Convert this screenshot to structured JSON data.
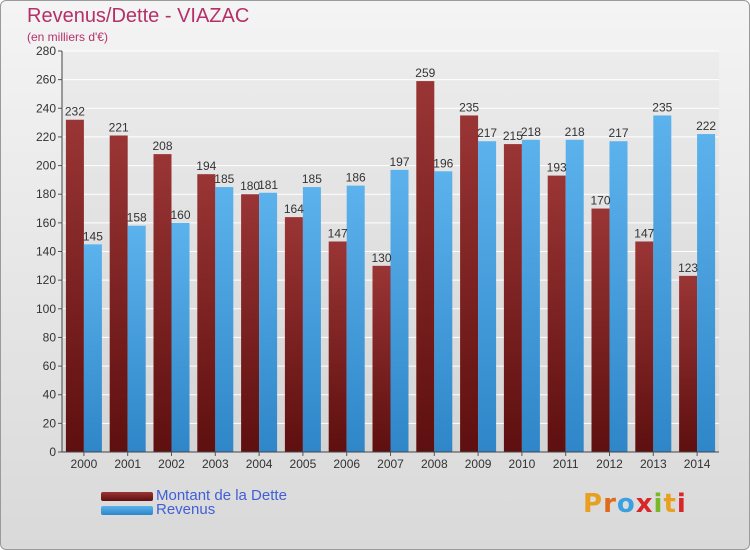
{
  "header": {
    "title": "Revenus/Dette - VIAZAC",
    "subtitle": "(en milliers d'€)"
  },
  "legend": [
    {
      "label": "Montant de la Dette",
      "color": "#7a1b1b"
    },
    {
      "label": "Revenus",
      "color": "#4aa3e3"
    }
  ],
  "logo": {
    "text": "Proxiti",
    "letter_colors": [
      "#e8a020",
      "#e06a1c",
      "#3aa0e0",
      "#d8262a",
      "#7ab82a",
      "#e8a020",
      "#d8262a"
    ]
  },
  "colors": {
    "dette": "#7a1b1b",
    "dette_light": "#9a3535",
    "revenus": "#4aa3e3",
    "revenus_dark": "#2d86cc",
    "title": "#b5306a",
    "legend_text": "#4060d8"
  },
  "chart_data": {
    "type": "bar",
    "title": "Revenus/Dette - VIAZAC",
    "subtitle": "(en milliers d'€)",
    "categories": [
      "2000",
      "2001",
      "2002",
      "2003",
      "2004",
      "2005",
      "2006",
      "2007",
      "2008",
      "2009",
      "2010",
      "2011",
      "2012",
      "2013",
      "2014"
    ],
    "series": [
      {
        "name": "Montant de la Dette",
        "values": [
          232,
          221,
          208,
          194,
          180,
          164,
          147,
          130,
          259,
          235,
          215,
          193,
          170,
          147,
          123
        ]
      },
      {
        "name": "Revenus",
        "values": [
          145,
          158,
          160,
          185,
          181,
          185,
          186,
          197,
          196,
          217,
          218,
          218,
          217,
          235,
          222
        ]
      }
    ],
    "yticks": [
      0,
      20,
      40,
      60,
      80,
      100,
      120,
      140,
      160,
      180,
      200,
      220,
      240,
      260,
      280
    ],
    "ylim": [
      0,
      280
    ],
    "grid": true,
    "legend_position": "bottom-left"
  }
}
